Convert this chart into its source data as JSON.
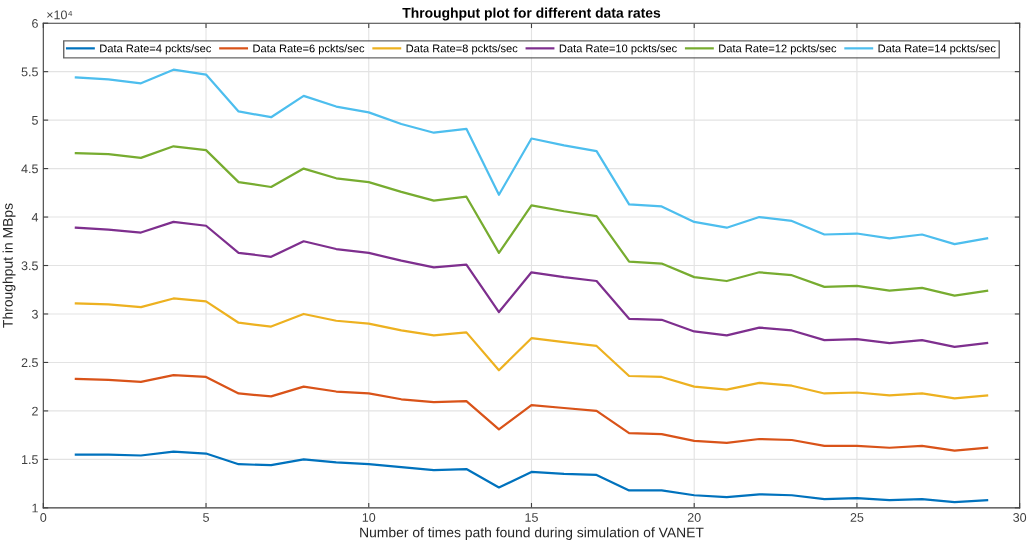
{
  "chart_data": {
    "type": "line",
    "title": "Throughput plot for different data rates",
    "xlabel": "Number of times path found during simulation of VANET",
    "ylabel": "Throughput in MBps",
    "annotations": [
      "×10⁴"
    ],
    "x": [
      1,
      2,
      3,
      4,
      5,
      6,
      7,
      8,
      9,
      10,
      11,
      12,
      13,
      14,
      15,
      16,
      17,
      18,
      19,
      20,
      21,
      22,
      23,
      24,
      25,
      26,
      27,
      28,
      29
    ],
    "xlim": [
      0,
      30
    ],
    "xticks": [
      0,
      5,
      10,
      15,
      20,
      25,
      30
    ],
    "ylim": [
      1,
      6
    ],
    "yticks": [
      1,
      1.5,
      2,
      2.5,
      3,
      3.5,
      4,
      4.5,
      5,
      5.5,
      6
    ],
    "grid": true,
    "legend": "top",
    "line_style": "solid",
    "marker": "none",
    "series": [
      {
        "name": "Data Rate=4 pckts/sec",
        "color": "#0072bd",
        "values": [
          1.55,
          1.55,
          1.54,
          1.58,
          1.56,
          1.45,
          1.44,
          1.5,
          1.47,
          1.45,
          1.42,
          1.39,
          1.4,
          1.21,
          1.37,
          1.35,
          1.34,
          1.18,
          1.18,
          1.13,
          1.11,
          1.14,
          1.13,
          1.09,
          1.1,
          1.08,
          1.09,
          1.06,
          1.08
        ]
      },
      {
        "name": "Data Rate=6 pckts/sec",
        "color": "#d95319",
        "values": [
          2.33,
          2.32,
          2.3,
          2.37,
          2.35,
          2.18,
          2.15,
          2.25,
          2.2,
          2.18,
          2.12,
          2.09,
          2.1,
          1.81,
          2.06,
          2.03,
          2.0,
          1.77,
          1.76,
          1.69,
          1.67,
          1.71,
          1.7,
          1.64,
          1.64,
          1.62,
          1.64,
          1.59,
          1.62
        ]
      },
      {
        "name": "Data Rate=8 pckts/sec",
        "color": "#edb120",
        "values": [
          3.11,
          3.1,
          3.07,
          3.16,
          3.13,
          2.91,
          2.87,
          3.0,
          2.93,
          2.9,
          2.83,
          2.78,
          2.81,
          2.42,
          2.75,
          2.71,
          2.67,
          2.36,
          2.35,
          2.25,
          2.22,
          2.29,
          2.26,
          2.18,
          2.19,
          2.16,
          2.18,
          2.13,
          2.16
        ]
      },
      {
        "name": "Data Rate=10 pckts/sec",
        "color": "#7e2f8e",
        "values": [
          3.89,
          3.87,
          3.84,
          3.95,
          3.91,
          3.63,
          3.59,
          3.75,
          3.67,
          3.63,
          3.55,
          3.48,
          3.51,
          3.02,
          3.43,
          3.38,
          3.34,
          2.95,
          2.94,
          2.82,
          2.78,
          2.86,
          2.83,
          2.73,
          2.74,
          2.7,
          2.73,
          2.66,
          2.7
        ]
      },
      {
        "name": "Data Rate=12 pckts/sec",
        "color": "#77ac30",
        "values": [
          4.66,
          4.65,
          4.61,
          4.73,
          4.69,
          4.36,
          4.31,
          4.5,
          4.4,
          4.36,
          4.26,
          4.17,
          4.21,
          3.63,
          4.12,
          4.06,
          4.01,
          3.54,
          3.52,
          3.38,
          3.34,
          3.43,
          3.4,
          3.28,
          3.29,
          3.24,
          3.27,
          3.19,
          3.24
        ]
      },
      {
        "name": "Data Rate=14 pckts/sec",
        "color": "#4dbeee",
        "values": [
          5.44,
          5.42,
          5.38,
          5.52,
          5.47,
          5.09,
          5.03,
          5.25,
          5.14,
          5.08,
          4.96,
          4.87,
          4.91,
          4.23,
          4.81,
          4.74,
          4.68,
          4.13,
          4.11,
          3.95,
          3.89,
          4.0,
          3.96,
          3.82,
          3.83,
          3.78,
          3.82,
          3.72,
          3.78
        ]
      }
    ]
  }
}
